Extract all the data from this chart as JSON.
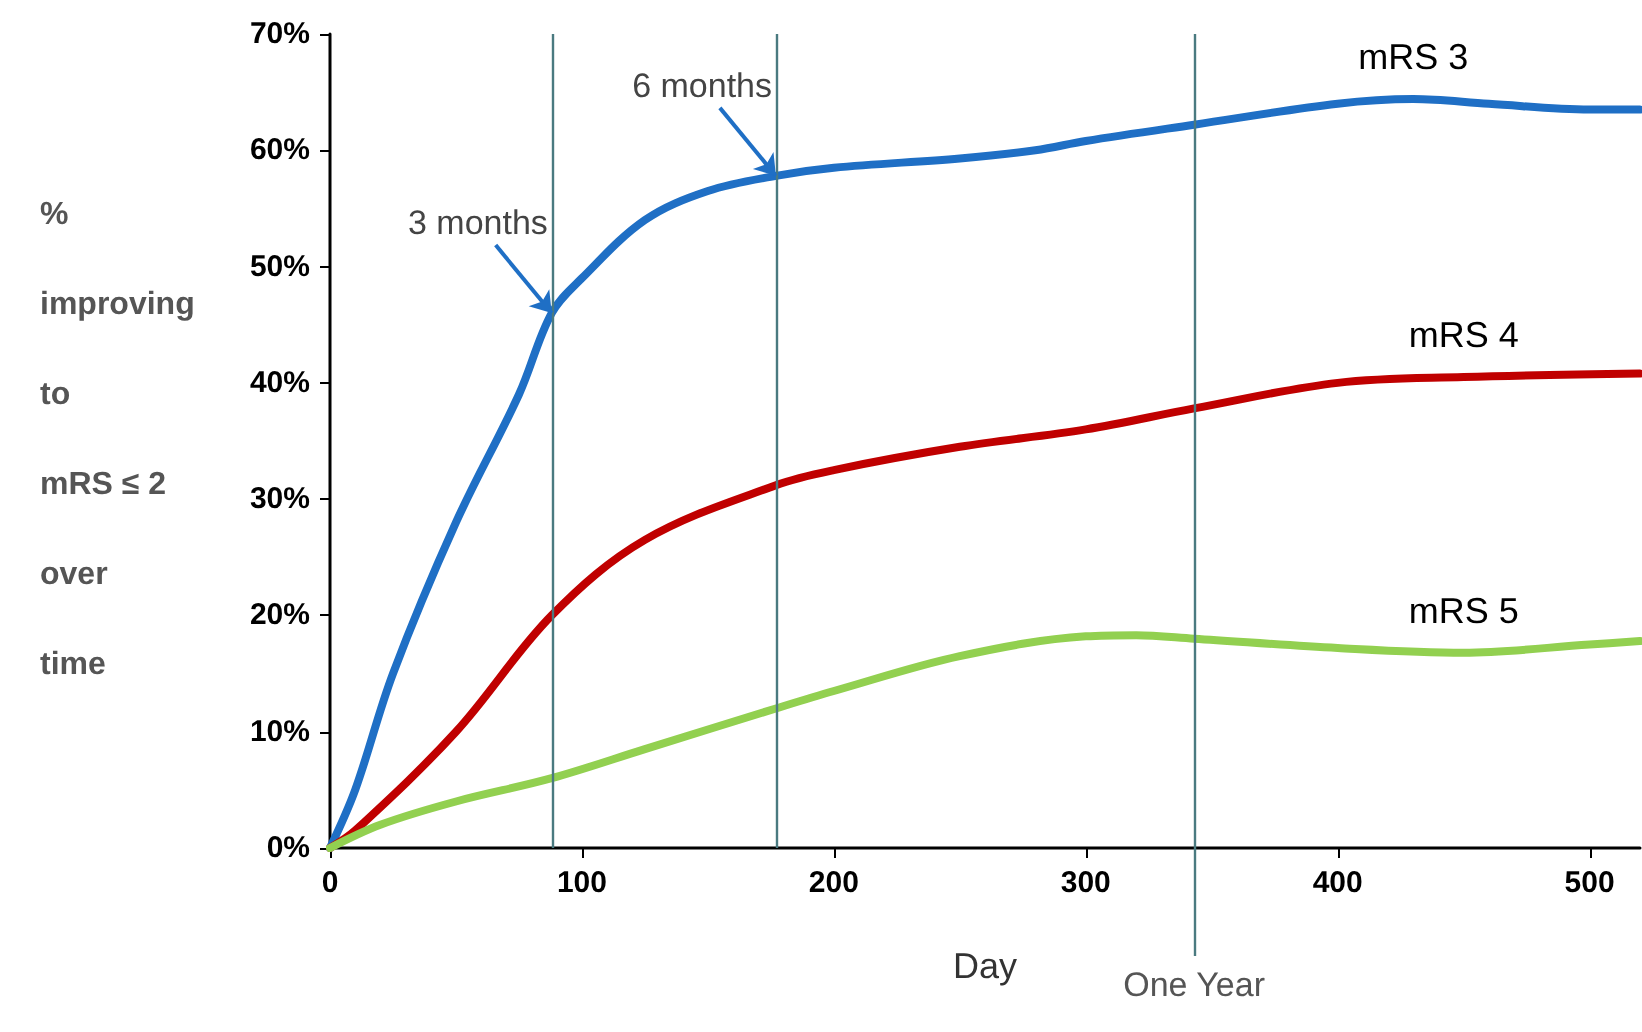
{
  "chart_data": {
    "type": "line",
    "xlabel": "Day",
    "ylabel": "%\nimproving\nto\nmRS ≤ 2\nover\ntime",
    "xlim": [
      0,
      520
    ],
    "xticks": [
      0,
      100,
      200,
      300,
      400,
      500
    ],
    "ylim": [
      0,
      70
    ],
    "yticks": [
      {
        "value": 0,
        "label": "0%"
      },
      {
        "value": 10,
        "label": "10%"
      },
      {
        "value": 20,
        "label": "20%"
      },
      {
        "value": 30,
        "label": "30%"
      },
      {
        "value": 40,
        "label": "40%"
      },
      {
        "value": 50,
        "label": "50%"
      },
      {
        "value": 60,
        "label": "60%"
      },
      {
        "value": 70,
        "label": "70%"
      }
    ],
    "grid": false,
    "legend": false,
    "marker": "none",
    "line_style": "solid",
    "series": [
      {
        "name": "mRS 3",
        "color": "#1f6fc5",
        "x": [
          0,
          10,
          25,
          50,
          75,
          88,
          100,
          125,
          150,
          177,
          200,
          250,
          280,
          300,
          343,
          400,
          430,
          460,
          500,
          520
        ],
        "values": [
          0,
          5,
          15,
          28,
          39,
          46,
          49,
          54,
          56.5,
          57.8,
          58.5,
          59.3,
          60,
          60.8,
          62.2,
          64,
          64.4,
          64,
          63.5,
          63.5
        ]
      },
      {
        "name": "mRS 4",
        "color": "#c00000",
        "x": [
          0,
          10,
          50,
          88,
          125,
          177,
          200,
          250,
          300,
          343,
          400,
          450,
          520
        ],
        "values": [
          0,
          1.5,
          10,
          20,
          26.5,
          31.2,
          32.5,
          34.5,
          36,
          37.8,
          40,
          40.5,
          40.8
        ]
      },
      {
        "name": "mRS 5",
        "color": "#92d050",
        "x": [
          0,
          20,
          50,
          88,
          125,
          177,
          200,
          250,
          300,
          320,
          343,
          400,
          450,
          500,
          520
        ],
        "values": [
          0,
          2,
          4,
          6,
          8.5,
          12,
          13.5,
          16.5,
          18.2,
          18.3,
          18,
          17.2,
          16.8,
          17.5,
          17.8
        ]
      }
    ],
    "ref_lines": [
      {
        "axis": "x",
        "value": 88,
        "label": null,
        "color": "#4a7a80"
      },
      {
        "axis": "x",
        "value": 177,
        "label": null,
        "color": "#4a7a80"
      },
      {
        "axis": "x",
        "value": 343,
        "label": "One Year",
        "color": "#4a7a80"
      }
    ],
    "annotations": [
      {
        "text": "3 months",
        "x": 88,
        "y": 46
      },
      {
        "text": "6 months",
        "x": 177,
        "y": 57.8
      }
    ]
  }
}
